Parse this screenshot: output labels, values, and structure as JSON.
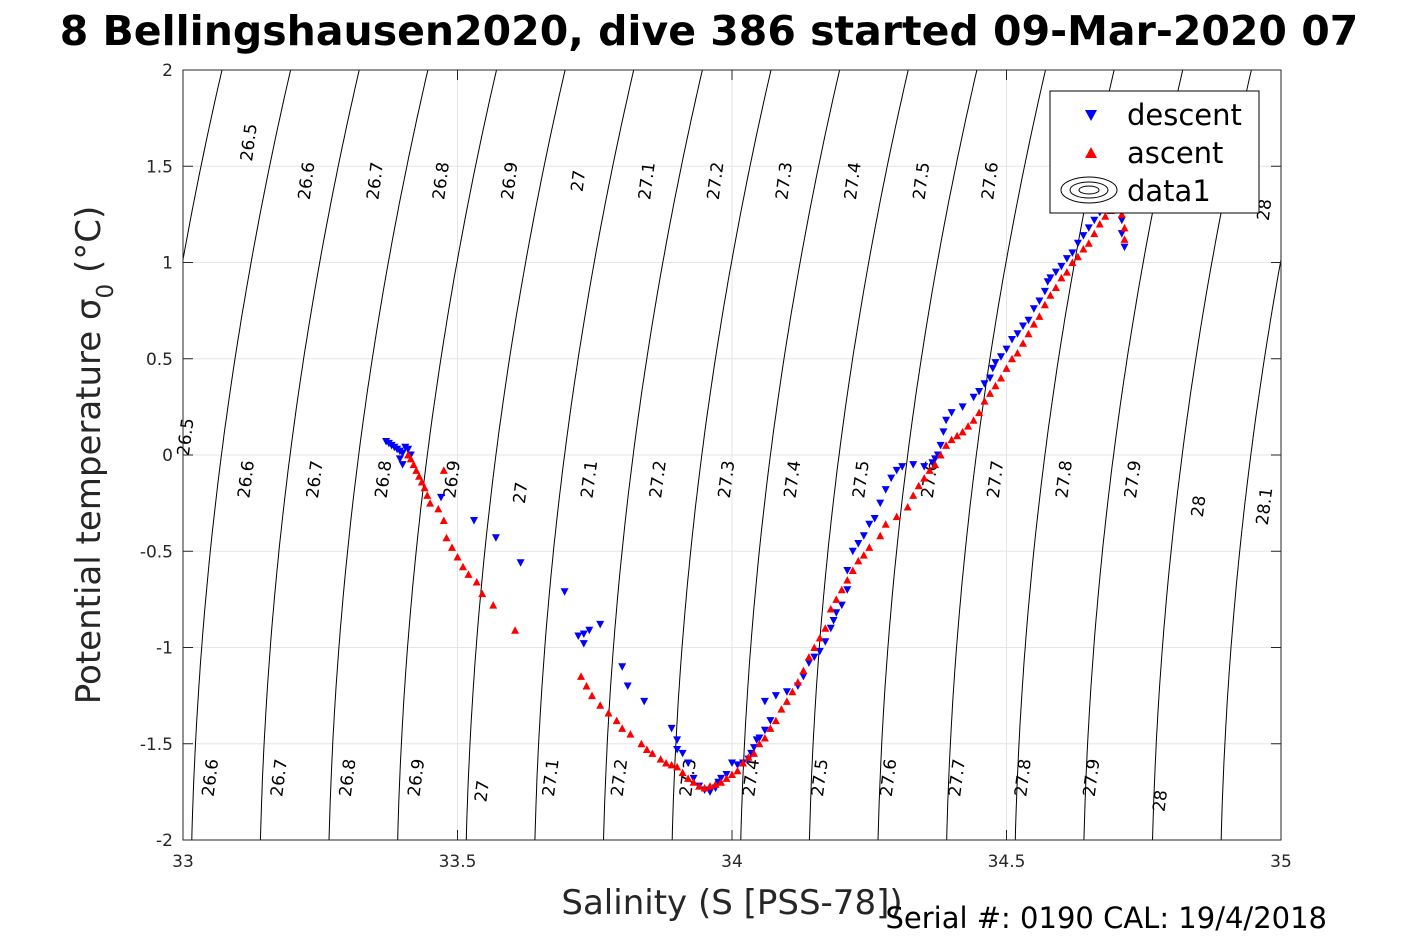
{
  "title": "8 Bellingshausen2020, dive 386 started 09-Mar-2020 07",
  "footer": "Serial #: 0190  CAL: 19/4/2018",
  "chart_data": {
    "type": "scatter",
    "xlabel": "Salinity (S [PSS-78])",
    "ylabel": "Potential temperature σ",
    "ylabel_sub": "0",
    "ylabel_unit": " (°C)",
    "xlim": [
      33,
      35
    ],
    "ylim": [
      -2,
      2
    ],
    "xticks": [
      33,
      33.5,
      34,
      34.5,
      35
    ],
    "xtick_labels": [
      "33",
      "33.5",
      "34",
      "34.5",
      "35"
    ],
    "yticks": [
      -2,
      -1.5,
      -1,
      -0.5,
      0,
      0.5,
      1,
      1.5,
      2
    ],
    "ytick_labels": [
      "-2",
      "-1.5",
      "-1",
      "-0.5",
      "0",
      "0.5",
      "1",
      "1.5",
      "2"
    ],
    "grid": true,
    "legend_position": "top-right",
    "contours": {
      "label": "data1",
      "levels": [
        26.5,
        26.6,
        26.7,
        26.8,
        26.9,
        27.0,
        27.1,
        27.2,
        27.3,
        27.4,
        27.5,
        27.6,
        27.7,
        27.8,
        27.9,
        28.0,
        28.1
      ],
      "labels_top": [
        {
          "text": "26.5",
          "x": 33.13,
          "y": 1.62
        },
        {
          "text": "26.6",
          "x": 33.235,
          "y": 1.42
        },
        {
          "text": "26.7",
          "x": 33.36,
          "y": 1.42
        },
        {
          "text": "26.8",
          "x": 33.48,
          "y": 1.42
        },
        {
          "text": "26.9",
          "x": 33.605,
          "y": 1.42
        },
        {
          "text": "27",
          "x": 33.73,
          "y": 1.42
        },
        {
          "text": "27.1",
          "x": 33.855,
          "y": 1.42
        },
        {
          "text": "27.2",
          "x": 33.98,
          "y": 1.42
        },
        {
          "text": "27.3",
          "x": 34.105,
          "y": 1.42
        },
        {
          "text": "27.4",
          "x": 34.23,
          "y": 1.42
        },
        {
          "text": "27.5",
          "x": 34.355,
          "y": 1.42
        },
        {
          "text": "27.6",
          "x": 34.48,
          "y": 1.42
        },
        {
          "text": "28",
          "x": 34.98,
          "y": 1.27
        }
      ],
      "labels_mid": [
        {
          "text": "26.5",
          "x": 33.015,
          "y": 0.09
        },
        {
          "text": "26.6",
          "x": 33.125,
          "y": -0.13
        },
        {
          "text": "26.7",
          "x": 33.25,
          "y": -0.13
        },
        {
          "text": "26.8",
          "x": 33.375,
          "y": -0.13
        },
        {
          "text": "26.9",
          "x": 33.5,
          "y": -0.13
        },
        {
          "text": "27",
          "x": 33.625,
          "y": -0.2
        },
        {
          "text": "27.1",
          "x": 33.75,
          "y": -0.13
        },
        {
          "text": "27.2",
          "x": 33.875,
          "y": -0.13
        },
        {
          "text": "27.3",
          "x": 34.0,
          "y": -0.13
        },
        {
          "text": "27.4",
          "x": 34.12,
          "y": -0.13
        },
        {
          "text": "27.5",
          "x": 34.245,
          "y": -0.13
        },
        {
          "text": "27.6",
          "x": 34.37,
          "y": -0.13
        },
        {
          "text": "27.7",
          "x": 34.49,
          "y": -0.13
        },
        {
          "text": "27.8",
          "x": 34.615,
          "y": -0.13
        },
        {
          "text": "27.9",
          "x": 34.74,
          "y": -0.13
        },
        {
          "text": "28",
          "x": 34.86,
          "y": -0.27
        },
        {
          "text": "28.1",
          "x": 34.98,
          "y": -0.27
        }
      ],
      "labels_bottom": [
        {
          "text": "26.6",
          "x": 33.06,
          "y": -1.68
        },
        {
          "text": "26.7",
          "x": 33.185,
          "y": -1.68
        },
        {
          "text": "26.8",
          "x": 33.31,
          "y": -1.68
        },
        {
          "text": "26.9",
          "x": 33.435,
          "y": -1.68
        },
        {
          "text": "27",
          "x": 33.555,
          "y": -1.75
        },
        {
          "text": "27.1",
          "x": 33.68,
          "y": -1.68
        },
        {
          "text": "27.2",
          "x": 33.805,
          "y": -1.68
        },
        {
          "text": "27.3",
          "x": 33.93,
          "y": -1.68
        },
        {
          "text": "27.4",
          "x": 34.045,
          "y": -1.68
        },
        {
          "text": "27.5",
          "x": 34.17,
          "y": -1.68
        },
        {
          "text": "27.6",
          "x": 34.295,
          "y": -1.68
        },
        {
          "text": "27.7",
          "x": 34.42,
          "y": -1.68
        },
        {
          "text": "27.8",
          "x": 34.54,
          "y": -1.68
        },
        {
          "text": "27.9",
          "x": 34.665,
          "y": -1.68
        },
        {
          "text": "28",
          "x": 34.79,
          "y": -1.8
        }
      ]
    },
    "series": [
      {
        "name": "descent",
        "color": "#0000ff",
        "marker": "triangle-down",
        "points": [
          [
            33.37,
            0.07
          ],
          [
            33.375,
            0.06
          ],
          [
            33.38,
            0.05
          ],
          [
            33.385,
            0.04
          ],
          [
            33.39,
            0.03
          ],
          [
            33.395,
            0.02
          ],
          [
            33.4,
            0.01
          ],
          [
            33.405,
            0.04
          ],
          [
            33.41,
            0.03
          ],
          [
            33.415,
            0.0
          ],
          [
            33.395,
            -0.02
          ],
          [
            33.4,
            -0.05
          ],
          [
            33.47,
            -0.22
          ],
          [
            33.53,
            -0.34
          ],
          [
            33.57,
            -0.43
          ],
          [
            33.615,
            -0.56
          ],
          [
            33.695,
            -0.71
          ],
          [
            33.72,
            -0.94
          ],
          [
            33.73,
            -0.93
          ],
          [
            33.74,
            -0.91
          ],
          [
            33.76,
            -0.88
          ],
          [
            33.73,
            -0.98
          ],
          [
            33.8,
            -1.1
          ],
          [
            33.81,
            -1.2
          ],
          [
            33.84,
            -1.28
          ],
          [
            33.89,
            -1.42
          ],
          [
            33.9,
            -1.48
          ],
          [
            33.9,
            -1.53
          ],
          [
            33.91,
            -1.55
          ],
          [
            33.92,
            -1.6
          ],
          [
            33.93,
            -1.68
          ],
          [
            33.94,
            -1.72
          ],
          [
            33.95,
            -1.74
          ],
          [
            33.96,
            -1.75
          ],
          [
            33.97,
            -1.73
          ],
          [
            33.975,
            -1.7
          ],
          [
            33.98,
            -1.68
          ],
          [
            33.99,
            -1.66
          ],
          [
            34.0,
            -1.6
          ],
          [
            34.01,
            -1.61
          ],
          [
            34.02,
            -1.6
          ],
          [
            34.03,
            -1.58
          ],
          [
            34.035,
            -1.55
          ],
          [
            34.04,
            -1.52
          ],
          [
            34.045,
            -1.48
          ],
          [
            34.05,
            -1.47
          ],
          [
            34.06,
            -1.43
          ],
          [
            34.07,
            -1.38
          ],
          [
            34.06,
            -1.28
          ],
          [
            34.08,
            -1.25
          ],
          [
            34.1,
            -1.23
          ],
          [
            34.12,
            -1.2
          ],
          [
            34.13,
            -1.15
          ],
          [
            34.14,
            -1.08
          ],
          [
            34.15,
            -1.05
          ],
          [
            34.16,
            -1.02
          ],
          [
            34.17,
            -0.97
          ],
          [
            34.18,
            -0.9
          ],
          [
            34.185,
            -0.86
          ],
          [
            34.19,
            -0.82
          ],
          [
            34.2,
            -0.78
          ],
          [
            34.21,
            -0.7
          ],
          [
            34.21,
            -0.6
          ],
          [
            34.22,
            -0.5
          ],
          [
            34.23,
            -0.46
          ],
          [
            34.24,
            -0.42
          ],
          [
            34.25,
            -0.36
          ],
          [
            34.26,
            -0.33
          ],
          [
            34.27,
            -0.25
          ],
          [
            34.28,
            -0.18
          ],
          [
            34.29,
            -0.12
          ],
          [
            34.3,
            -0.08
          ],
          [
            34.31,
            -0.06
          ],
          [
            34.33,
            -0.05
          ],
          [
            34.35,
            -0.06
          ],
          [
            34.365,
            -0.04
          ],
          [
            34.37,
            -0.02
          ],
          [
            34.375,
            0.0
          ],
          [
            34.38,
            0.05
          ],
          [
            34.385,
            0.12
          ],
          [
            34.39,
            0.18
          ],
          [
            34.4,
            0.22
          ],
          [
            34.42,
            0.25
          ],
          [
            34.44,
            0.3
          ],
          [
            34.45,
            0.33
          ],
          [
            34.46,
            0.37
          ],
          [
            34.47,
            0.4
          ],
          [
            34.475,
            0.45
          ],
          [
            34.48,
            0.48
          ],
          [
            34.49,
            0.51
          ],
          [
            34.5,
            0.55
          ],
          [
            34.51,
            0.6
          ],
          [
            34.52,
            0.63
          ],
          [
            34.53,
            0.67
          ],
          [
            34.54,
            0.7
          ],
          [
            34.55,
            0.76
          ],
          [
            34.56,
            0.8
          ],
          [
            34.57,
            0.85
          ],
          [
            34.575,
            0.9
          ],
          [
            34.58,
            0.92
          ],
          [
            34.59,
            0.95
          ],
          [
            34.6,
            0.98
          ],
          [
            34.61,
            1.02
          ],
          [
            34.62,
            1.05
          ],
          [
            34.63,
            1.1
          ],
          [
            34.64,
            1.14
          ],
          [
            34.65,
            1.18
          ],
          [
            34.66,
            1.22
          ],
          [
            34.67,
            1.26
          ],
          [
            34.68,
            1.3
          ],
          [
            34.69,
            1.33
          ],
          [
            34.705,
            1.3
          ],
          [
            34.71,
            1.22
          ],
          [
            34.71,
            1.15
          ],
          [
            34.715,
            1.08
          ]
        ]
      },
      {
        "name": "ascent",
        "color": "#ff0000",
        "marker": "triangle-up",
        "points": [
          [
            33.41,
            0.0
          ],
          [
            33.415,
            -0.02
          ],
          [
            33.42,
            -0.05
          ],
          [
            33.425,
            -0.08
          ],
          [
            33.43,
            -0.11
          ],
          [
            33.435,
            -0.14
          ],
          [
            33.44,
            -0.17
          ],
          [
            33.445,
            -0.21
          ],
          [
            33.45,
            -0.25
          ],
          [
            33.465,
            -0.28
          ],
          [
            33.475,
            -0.34
          ],
          [
            33.48,
            -0.43
          ],
          [
            33.49,
            -0.48
          ],
          [
            33.5,
            -0.53
          ],
          [
            33.51,
            -0.58
          ],
          [
            33.52,
            -0.62
          ],
          [
            33.535,
            -0.66
          ],
          [
            33.545,
            -0.72
          ],
          [
            33.565,
            -0.78
          ],
          [
            33.605,
            -0.91
          ],
          [
            33.475,
            -0.08
          ],
          [
            33.725,
            -1.15
          ],
          [
            33.735,
            -1.2
          ],
          [
            33.745,
            -1.25
          ],
          [
            33.76,
            -1.3
          ],
          [
            33.775,
            -1.34
          ],
          [
            33.79,
            -1.38
          ],
          [
            33.8,
            -1.42
          ],
          [
            33.815,
            -1.45
          ],
          [
            33.835,
            -1.5
          ],
          [
            33.845,
            -1.53
          ],
          [
            33.855,
            -1.55
          ],
          [
            33.87,
            -1.58
          ],
          [
            33.88,
            -1.6
          ],
          [
            33.89,
            -1.61
          ],
          [
            33.9,
            -1.62
          ],
          [
            33.91,
            -1.65
          ],
          [
            33.92,
            -1.68
          ],
          [
            33.93,
            -1.7
          ],
          [
            33.94,
            -1.72
          ],
          [
            33.95,
            -1.73
          ],
          [
            33.96,
            -1.72
          ],
          [
            33.97,
            -1.71
          ],
          [
            33.98,
            -1.7
          ],
          [
            33.99,
            -1.68
          ],
          [
            34.0,
            -1.66
          ],
          [
            34.01,
            -1.64
          ],
          [
            34.02,
            -1.6
          ],
          [
            34.03,
            -1.57
          ],
          [
            34.04,
            -1.55
          ],
          [
            34.05,
            -1.5
          ],
          [
            34.06,
            -1.47
          ],
          [
            34.07,
            -1.42
          ],
          [
            34.08,
            -1.38
          ],
          [
            34.09,
            -1.32
          ],
          [
            34.1,
            -1.28
          ],
          [
            34.11,
            -1.23
          ],
          [
            34.12,
            -1.18
          ],
          [
            34.13,
            -1.12
          ],
          [
            34.14,
            -1.05
          ],
          [
            34.15,
            -1.0
          ],
          [
            34.16,
            -0.95
          ],
          [
            34.17,
            -0.9
          ],
          [
            34.18,
            -0.8
          ],
          [
            34.19,
            -0.75
          ],
          [
            34.2,
            -0.7
          ],
          [
            34.21,
            -0.65
          ],
          [
            34.22,
            -0.6
          ],
          [
            34.23,
            -0.55
          ],
          [
            34.24,
            -0.52
          ],
          [
            34.25,
            -0.48
          ],
          [
            34.27,
            -0.42
          ],
          [
            34.28,
            -0.36
          ],
          [
            34.3,
            -0.32
          ],
          [
            34.32,
            -0.27
          ],
          [
            34.33,
            -0.21
          ],
          [
            34.34,
            -0.16
          ],
          [
            34.35,
            -0.12
          ],
          [
            34.36,
            -0.08
          ],
          [
            34.37,
            -0.05
          ],
          [
            34.38,
            0.0
          ],
          [
            34.39,
            0.05
          ],
          [
            34.4,
            0.08
          ],
          [
            34.41,
            0.1
          ],
          [
            34.42,
            0.12
          ],
          [
            34.43,
            0.15
          ],
          [
            34.44,
            0.18
          ],
          [
            34.45,
            0.22
          ],
          [
            34.46,
            0.28
          ],
          [
            34.47,
            0.32
          ],
          [
            34.48,
            0.36
          ],
          [
            34.49,
            0.4
          ],
          [
            34.5,
            0.45
          ],
          [
            34.51,
            0.5
          ],
          [
            34.52,
            0.53
          ],
          [
            34.53,
            0.58
          ],
          [
            34.54,
            0.63
          ],
          [
            34.55,
            0.68
          ],
          [
            34.56,
            0.72
          ],
          [
            34.57,
            0.78
          ],
          [
            34.58,
            0.83
          ],
          [
            34.59,
            0.87
          ],
          [
            34.6,
            0.92
          ],
          [
            34.61,
            0.95
          ],
          [
            34.62,
            1.0
          ],
          [
            34.63,
            1.03
          ],
          [
            34.64,
            1.07
          ],
          [
            34.65,
            1.1
          ],
          [
            34.66,
            1.15
          ],
          [
            34.67,
            1.2
          ],
          [
            34.68,
            1.24
          ],
          [
            34.69,
            1.27
          ],
          [
            34.7,
            1.3
          ],
          [
            34.71,
            1.25
          ],
          [
            34.715,
            1.18
          ],
          [
            34.715,
            1.12
          ]
        ]
      }
    ]
  }
}
